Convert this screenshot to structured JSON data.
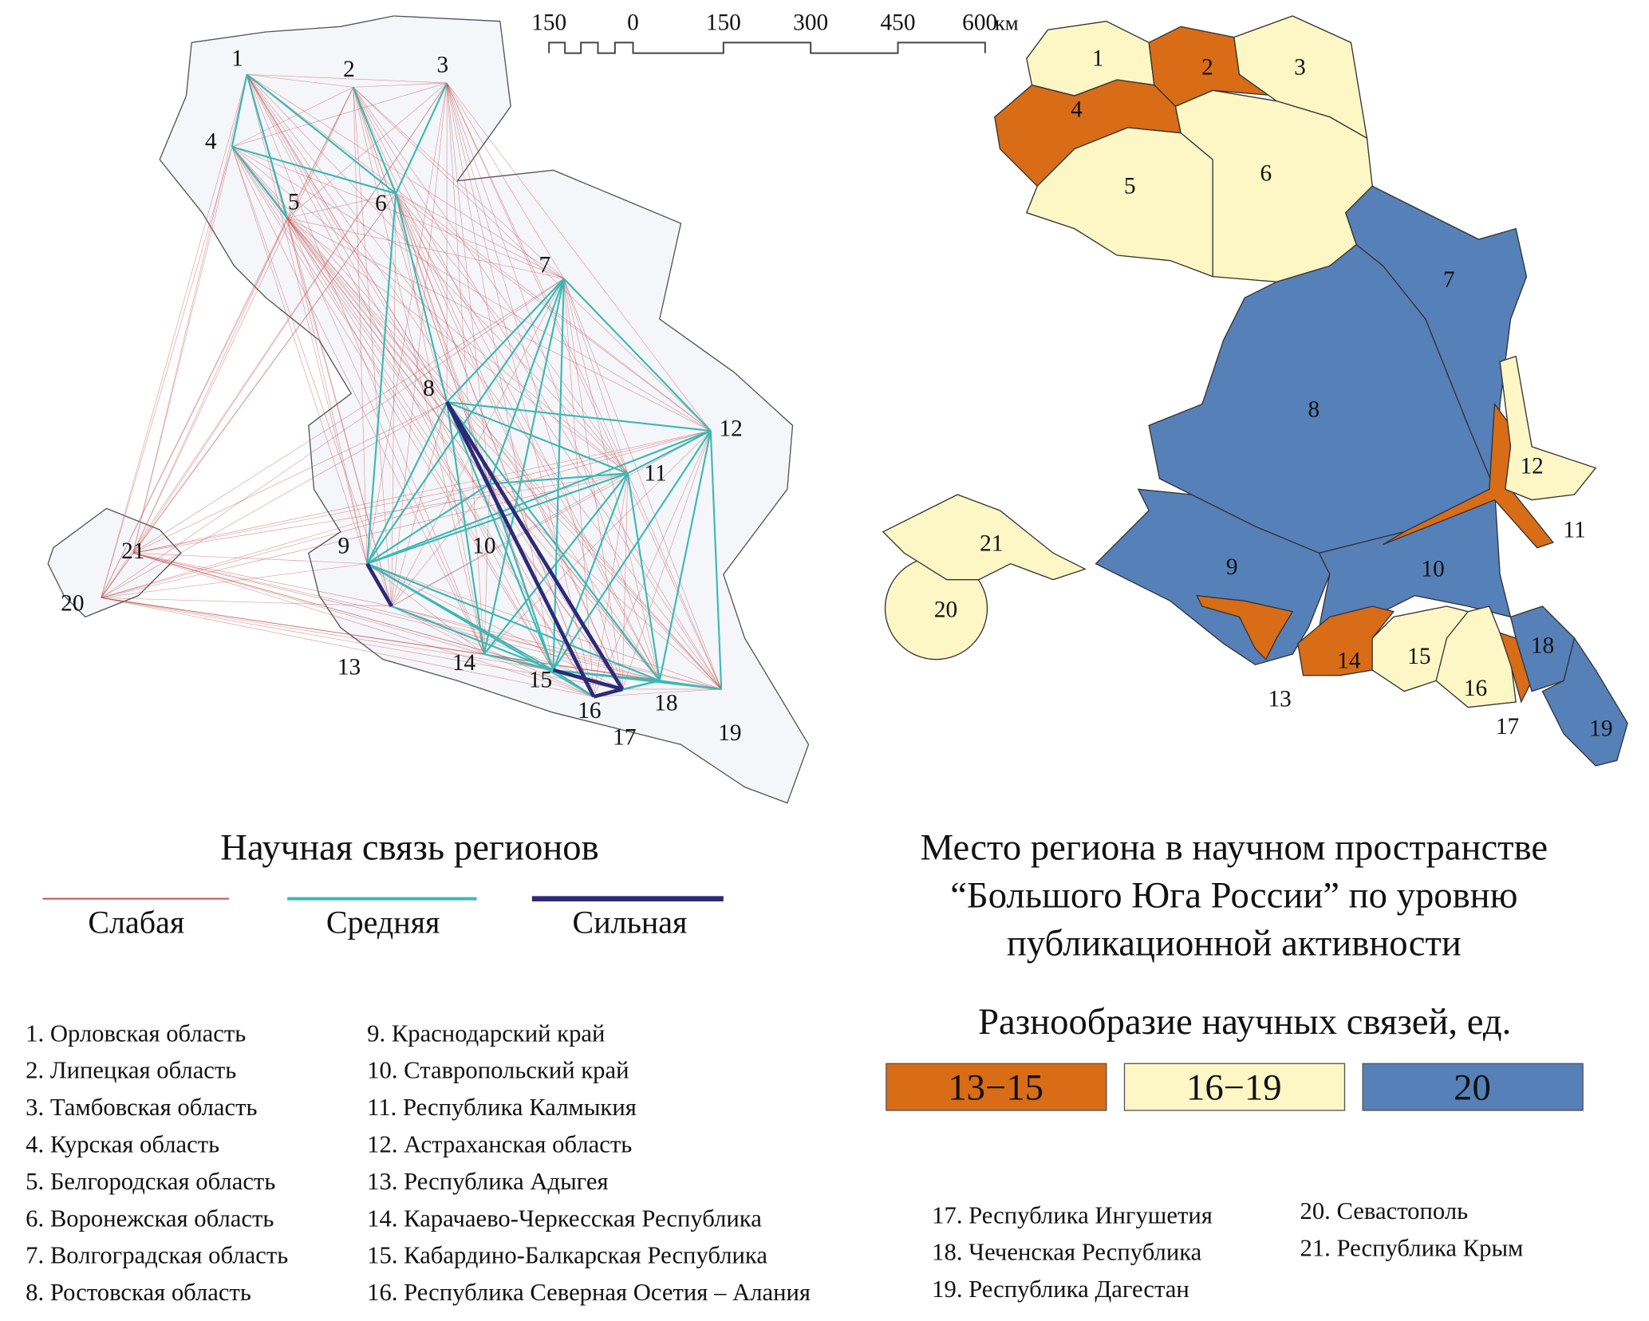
{
  "scale_bar": {
    "ticks": [
      "150",
      "0",
      "150",
      "300",
      "450",
      "600"
    ],
    "unit": "км"
  },
  "left_map": {
    "title": "Научная связь регионов",
    "legend": [
      {
        "label": "Слабая",
        "color": "#c0504d"
      },
      {
        "label": "Средняя",
        "color": "#3cb8b4"
      },
      {
        "label": "Сильная",
        "color": "#2b2a7a"
      }
    ],
    "links": {
      "strong": [
        [
          8,
          16
        ],
        [
          8,
          17
        ],
        [
          9,
          13
        ],
        [
          15,
          17
        ],
        [
          16,
          17
        ]
      ],
      "medium": [
        [
          1,
          4
        ],
        [
          1,
          6
        ],
        [
          1,
          5
        ],
        [
          2,
          6
        ],
        [
          3,
          6
        ],
        [
          4,
          5
        ],
        [
          4,
          6
        ],
        [
          6,
          8
        ],
        [
          6,
          9
        ],
        [
          7,
          8
        ],
        [
          7,
          12
        ],
        [
          7,
          9
        ],
        [
          7,
          15
        ],
        [
          7,
          14
        ],
        [
          7,
          10
        ],
        [
          8,
          12
        ],
        [
          8,
          9
        ],
        [
          8,
          10
        ],
        [
          8,
          11
        ],
        [
          8,
          14
        ],
        [
          8,
          15
        ],
        [
          8,
          18
        ],
        [
          9,
          10
        ],
        [
          9,
          11
        ],
        [
          9,
          12
        ],
        [
          9,
          15
        ],
        [
          9,
          16
        ],
        [
          9,
          18
        ],
        [
          10,
          11
        ],
        [
          10,
          15
        ],
        [
          11,
          12
        ],
        [
          11,
          15
        ],
        [
          11,
          18
        ],
        [
          12,
          18
        ],
        [
          12,
          15
        ],
        [
          12,
          19
        ],
        [
          13,
          15
        ],
        [
          14,
          15
        ],
        [
          15,
          16
        ],
        [
          15,
          18
        ],
        [
          16,
          18
        ],
        [
          17,
          18
        ],
        [
          18,
          19
        ],
        [
          15,
          19
        ],
        [
          14,
          11
        ]
      ]
    }
  },
  "right_map": {
    "title_lines": [
      "Место региона в научном пространстве",
      "“Большого Юга России” по уровню",
      "публикационной активности"
    ],
    "legend_title": "Разнообразие научных связей, ед.",
    "classes": [
      {
        "label": "13−15",
        "color": "#d86c17",
        "regions": [
          2,
          4,
          11,
          13,
          14,
          17
        ]
      },
      {
        "label": "16−19",
        "color": "#fdf7c5",
        "regions": [
          1,
          3,
          5,
          6,
          12,
          15,
          16,
          20,
          21
        ]
      },
      {
        "label": "20",
        "color": "#5680b8",
        "regions": [
          7,
          8,
          9,
          10,
          18,
          19
        ]
      }
    ]
  },
  "regions": [
    "1. Орловская область",
    "2. Липецкая область",
    "3. Тамбовская область",
    "4. Курская область",
    "5. Белгородская область",
    "6. Воронежская область",
    "7. Волгоградская область",
    "8. Ростовская область",
    "9. Краснодарский край",
    "10. Ставропольский край",
    "11. Республика Калмыкия",
    "12. Астраханская область",
    "13. Республика Адыгея",
    "14. Карачаево-Черкесская Республика",
    "15. Кабардино-Балкарская Республика",
    "16. Республика Северная Осетия – Алания",
    "17. Республика Ингушетия",
    "18. Чеченская Республика",
    "19. Республика Дагестан",
    "20. Севастополь",
    "21. Республика Крым"
  ],
  "region_numbers": [
    "1",
    "2",
    "3",
    "4",
    "5",
    "6",
    "7",
    "8",
    "9",
    "10",
    "11",
    "12",
    "13",
    "14",
    "15",
    "16",
    "17",
    "18",
    "19",
    "20",
    "21"
  ]
}
